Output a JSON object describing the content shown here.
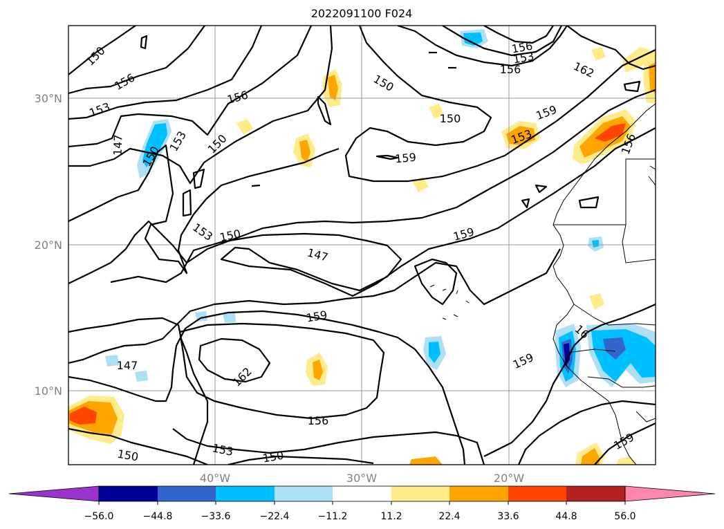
{
  "title": "2022091100 F024",
  "map": {
    "lat_labels": [
      "30°N",
      "20°N",
      "10°N"
    ],
    "lon_labels": [
      "40°W",
      "30°W",
      "20°W"
    ],
    "contour_labels": [
      "150",
      "156",
      "153",
      "147",
      "150",
      "153",
      "156",
      "150",
      "153",
      "150",
      "147",
      "150",
      "159",
      "150",
      "156",
      "159",
      "162",
      "153",
      "156",
      "159",
      "162",
      "159",
      "153",
      "147",
      "156",
      "153",
      "150",
      "150",
      "159",
      "16",
      "156"
    ]
  },
  "colorbar": {
    "ticks": [
      "−56.0",
      "−44.8",
      "−33.6",
      "−22.4",
      "−11.2",
      "11.2",
      "22.4",
      "33.6",
      "44.8",
      "56.0"
    ],
    "colors": [
      "#9933cc",
      "#000099",
      "#3366cc",
      "#00bfff",
      "#aee0f5",
      "#ffffff",
      "#ffeb8a",
      "#ffa500",
      "#ff4500",
      "#b22222",
      "#ff88aa"
    ]
  }
}
